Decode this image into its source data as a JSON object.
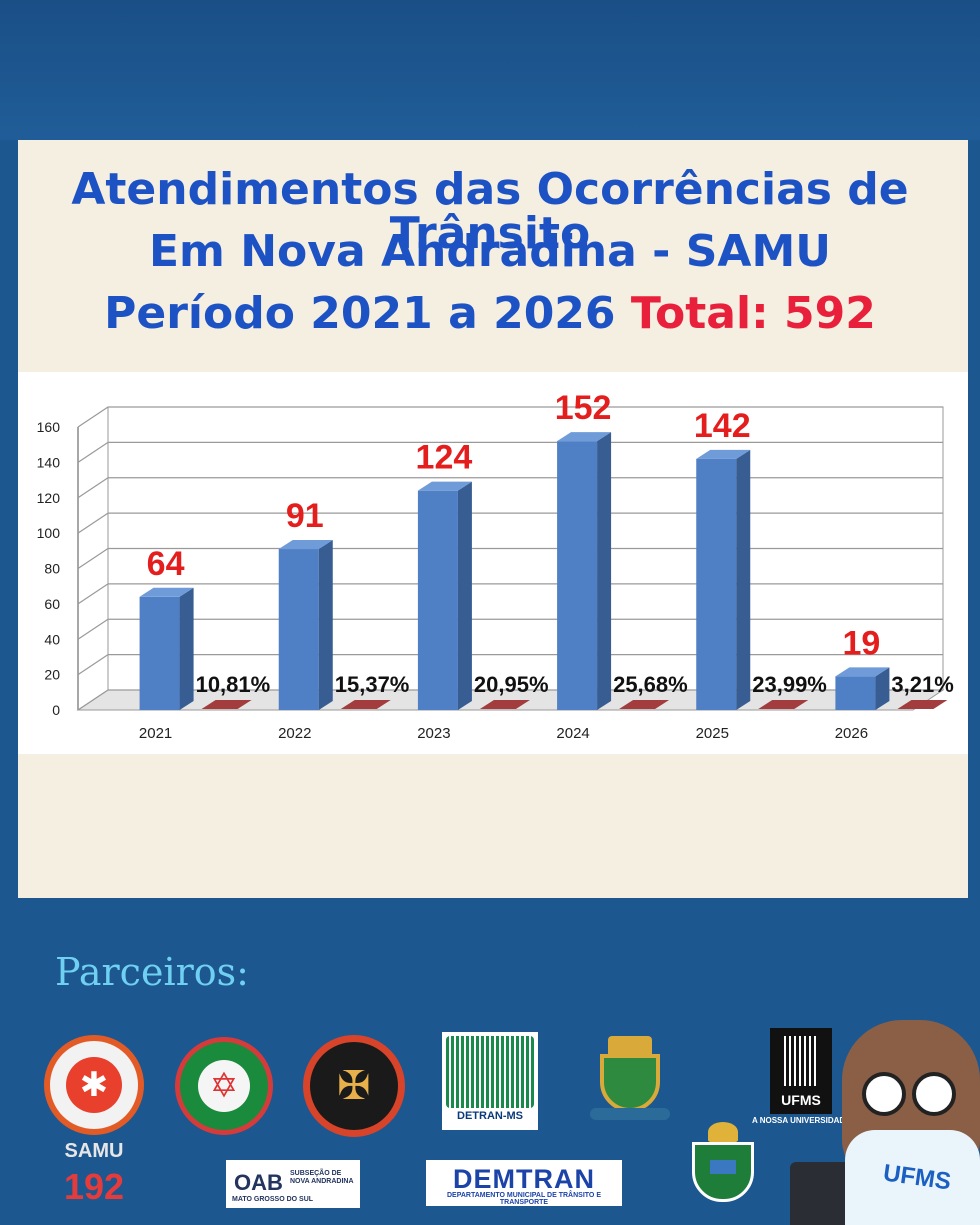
{
  "header": {
    "line1": "Atendimentos das Ocorrências de Trânsito",
    "line2": "Em Nova Andradina - SAMU",
    "line3_prefix": "Período 2021 a 2026",
    "line3_total": "Total: 592"
  },
  "chart_data": {
    "type": "bar",
    "categories": [
      "2021",
      "2022",
      "2023",
      "2024",
      "2025",
      "2026"
    ],
    "values": [
      64,
      91,
      124,
      152,
      142,
      19
    ],
    "value_labels": [
      "64",
      "91",
      "124",
      "152",
      "142",
      "19"
    ],
    "percent_labels": [
      "10,81%",
      "15,37%",
      "20,95%",
      "25,68%",
      "23,99%",
      "3,21%"
    ],
    "percent_values": [
      10.81,
      15.37,
      20.95,
      25.68,
      23.99,
      3.21
    ],
    "y_ticks": [
      "0",
      "20",
      "40",
      "60",
      "80",
      "100",
      "120",
      "140",
      "160"
    ],
    "ylim": [
      0,
      160
    ],
    "title": "",
    "xlabel": "",
    "ylabel": "",
    "grid": true,
    "style": "3d",
    "colors": {
      "bar": "#4f7fc4",
      "bar_side": "#375d93",
      "bar_top": "#6f9bd8",
      "value_label": "#e41d1d",
      "secondary_bar": "#a33d3d"
    }
  },
  "partners": {
    "title": "Parceiros:",
    "samu_name": "SAMU",
    "samu_number": "192",
    "detran_label": "DETRAN-MS",
    "oab_label": "OAB",
    "oab_sub": "SUBSEÇÃO DE NOVA ANDRADINA",
    "oab_state": "MATO GROSSO DO SUL",
    "demtran_name": "DEMTRAN",
    "demtran_sub": "DEPARTAMENTO MUNICIPAL DE TRÂNSITO E TRANSPORTE",
    "ufms_label": "UFMS",
    "ufms_tagline": "A NOSSA UNIVERSIDADE",
    "mascot_shirt": "UFMS"
  },
  "colors": {
    "background": "#1d578f",
    "panel": "#f4efe1",
    "title_blue": "#1d52c5",
    "total_red": "#e8203c",
    "partners_title": "#6fd0f2"
  }
}
